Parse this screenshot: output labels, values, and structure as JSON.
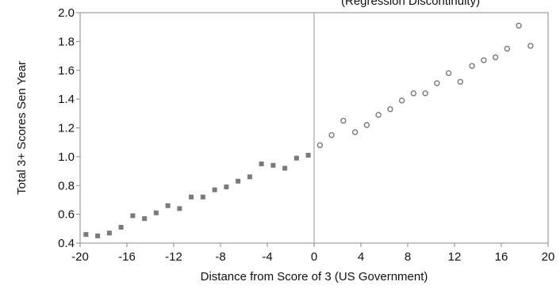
{
  "chart_data": {
    "type": "scatter",
    "title": "(Regression Discontinuity)",
    "xlabel": "Distance from Score of 3 (US Government)",
    "ylabel": "Total 3+ Scores Sen Year",
    "xlim": [
      -20,
      20
    ],
    "ylim": [
      0.4,
      2.0
    ],
    "x_ticks": [
      -20,
      -16,
      -12,
      -8,
      -4,
      0,
      4,
      8,
      12,
      16,
      20
    ],
    "y_ticks": [
      0.4,
      0.6,
      0.8,
      1.0,
      1.2,
      1.4,
      1.6,
      1.8,
      2.0
    ],
    "x_tick_labels": [
      "-20",
      "-16",
      "-12",
      "-8",
      "-4",
      "0",
      "4",
      "8",
      "12",
      "16",
      "20"
    ],
    "y_tick_labels": [
      "0.4",
      "0.6",
      "0.8",
      "1.0",
      "1.2",
      "1.4",
      "1.6",
      "1.8",
      "2.0"
    ],
    "discontinuity_x": 0,
    "grid": false,
    "series": [
      {
        "marker": "filled-square",
        "color": "#7a7a7a",
        "points": [
          [
            -19.5,
            0.46
          ],
          [
            -18.5,
            0.45
          ],
          [
            -17.5,
            0.47
          ],
          [
            -16.5,
            0.51
          ],
          [
            -15.5,
            0.59
          ],
          [
            -14.5,
            0.57
          ],
          [
            -13.5,
            0.61
          ],
          [
            -12.5,
            0.66
          ],
          [
            -11.5,
            0.64
          ],
          [
            -10.5,
            0.72
          ],
          [
            -9.5,
            0.72
          ],
          [
            -8.5,
            0.77
          ],
          [
            -7.5,
            0.79
          ],
          [
            -6.5,
            0.83
          ],
          [
            -5.5,
            0.86
          ],
          [
            -4.5,
            0.95
          ],
          [
            -3.5,
            0.94
          ],
          [
            -2.5,
            0.92
          ],
          [
            -1.5,
            0.99
          ],
          [
            -0.5,
            1.01
          ]
        ]
      },
      {
        "marker": "hollow-circle",
        "color": "#7a7a7a",
        "points": [
          [
            0.5,
            1.08
          ],
          [
            1.5,
            1.15
          ],
          [
            2.5,
            1.25
          ],
          [
            3.5,
            1.17
          ],
          [
            4.5,
            1.22
          ],
          [
            5.5,
            1.29
          ],
          [
            6.5,
            1.33
          ],
          [
            7.5,
            1.39
          ],
          [
            8.5,
            1.44
          ],
          [
            9.5,
            1.44
          ],
          [
            10.5,
            1.51
          ],
          [
            11.5,
            1.58
          ],
          [
            12.5,
            1.52
          ],
          [
            13.5,
            1.63
          ],
          [
            14.5,
            1.67
          ],
          [
            15.5,
            1.69
          ],
          [
            16.5,
            1.75
          ],
          [
            17.5,
            1.91
          ],
          [
            18.5,
            1.77
          ]
        ]
      }
    ]
  }
}
